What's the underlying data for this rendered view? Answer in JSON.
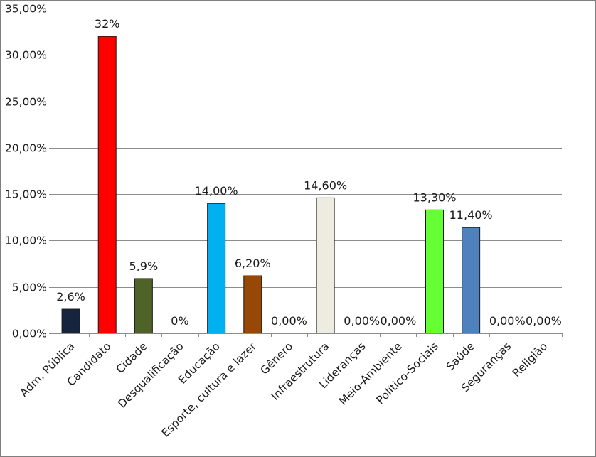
{
  "chart_data": {
    "type": "bar",
    "categories": [
      "Adm. Pública",
      "Candidato",
      "Cidade",
      "Desqualificação",
      "Educação",
      "Esporte, cultura e lazer",
      "Gênero",
      "Infraestrutura",
      "Lideranças",
      "Meio-Ambiente",
      "Político-Sociais",
      "Saúde",
      "Seguranças",
      "Religião"
    ],
    "values": [
      2.6,
      32,
      5.9,
      0,
      14,
      6.2,
      0,
      14.6,
      0,
      0,
      13.3,
      11.4,
      0,
      0
    ],
    "data_labels": [
      "2,6%",
      "32%",
      "5,9%",
      "0%",
      "14,00%",
      "6,20%",
      "0,00%",
      "14,60%",
      "0,00%",
      "0,00%",
      "13,30%",
      "11,40%",
      "0,00%",
      "0,00%"
    ],
    "colors": [
      "#16243e",
      "#ff0000",
      "#4f6228",
      "#ffffff",
      "#00b0f0",
      "#974706",
      "#ffffff",
      "#eeece1",
      "#ffffff",
      "#ffffff",
      "#66ff33",
      "#4f81bd",
      "#ffffff",
      "#ffffff"
    ],
    "y_ticks": [
      0,
      5,
      10,
      15,
      20,
      25,
      30,
      35
    ],
    "y_tick_labels": [
      "0,00%",
      "5,00%",
      "10,00%",
      "15,00%",
      "20,00%",
      "25,00%",
      "30,00%",
      "35,00%"
    ],
    "ylim": [
      0,
      35
    ],
    "title": "",
    "xlabel": "",
    "ylabel": "",
    "grid": true,
    "legend": "none"
  }
}
